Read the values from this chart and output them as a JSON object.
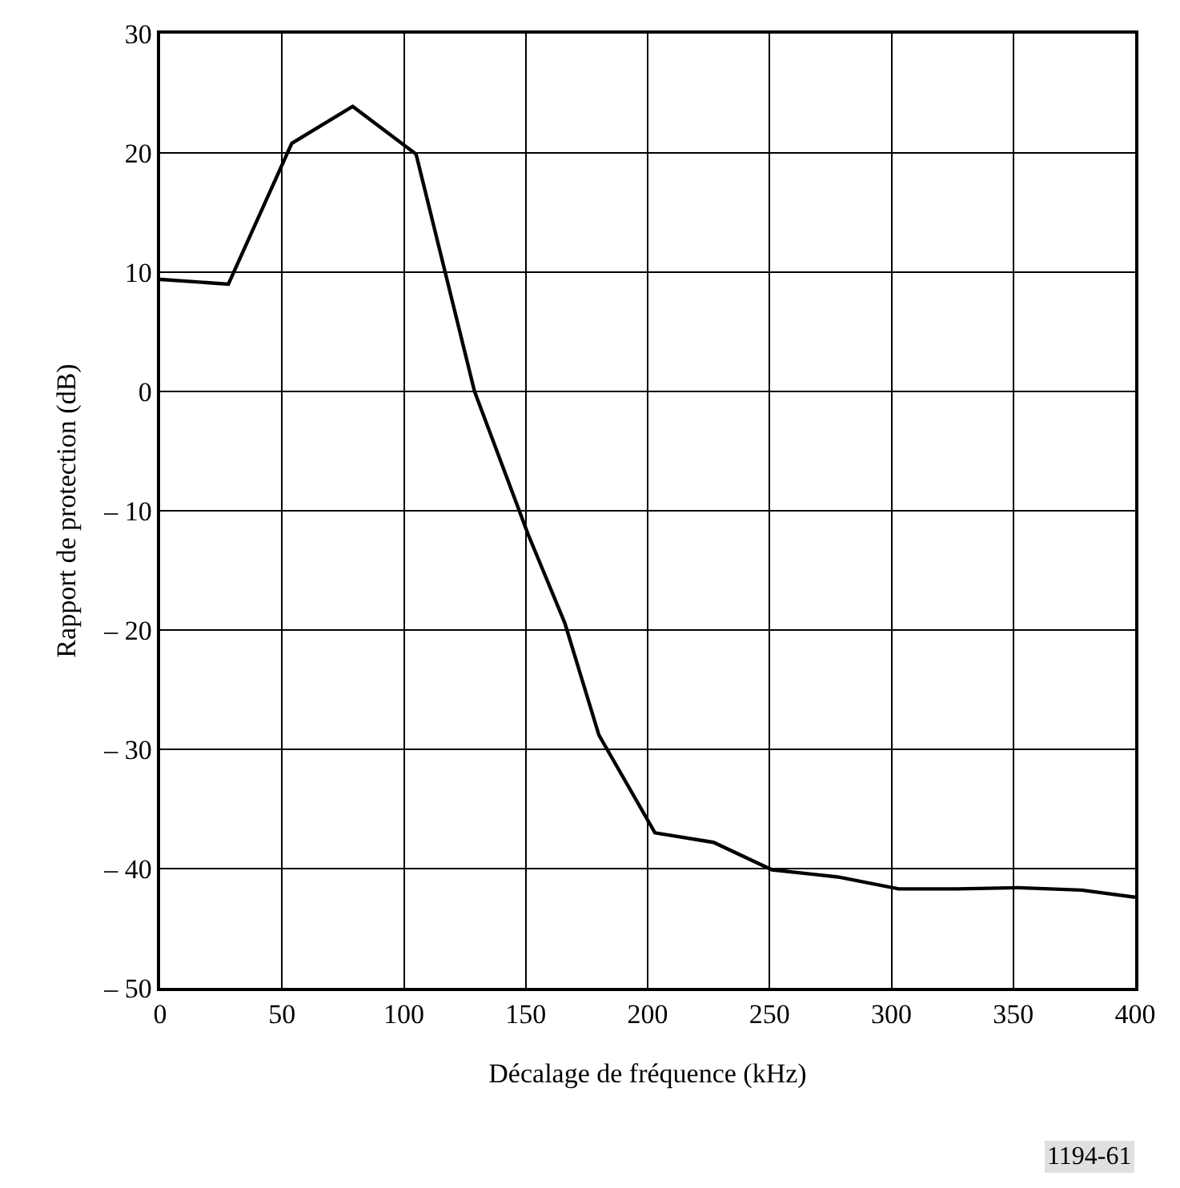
{
  "chart_data": {
    "type": "line",
    "xlabel": "Décalage de fréquence (kHz)",
    "ylabel": "Rapport de protection (dB)",
    "x": [
      0,
      28,
      54,
      79,
      105,
      129,
      151,
      166,
      180,
      203,
      227,
      251,
      278,
      303,
      327,
      352,
      378,
      400
    ],
    "series": [
      {
        "color": "#000000",
        "values": [
          9.4,
          9.0,
          20.8,
          23.9,
          19.9,
          0,
          -12,
          -19.4,
          -28.8,
          -37.0,
          -37.8,
          -40.1,
          -40.7,
          -41.7,
          -41.7,
          -41.6,
          -41.8,
          -42.4
        ]
      }
    ],
    "xlim": [
      0,
      400
    ],
    "xticks": [
      0,
      50,
      100,
      150,
      200,
      250,
      300,
      350,
      400
    ],
    "ylim": [
      -50,
      30
    ],
    "yticks": [
      {
        "value": -50,
        "label": "– 50"
      },
      {
        "value": -40,
        "label": "– 40"
      },
      {
        "value": -30,
        "label": "– 30"
      },
      {
        "value": -20,
        "label": "– 20"
      },
      {
        "value": -10,
        "label": "– 10"
      },
      0,
      10,
      20,
      30
    ],
    "grid": true,
    "marker": "none",
    "line_style": "solid",
    "annotations": [
      "1194-61"
    ]
  }
}
